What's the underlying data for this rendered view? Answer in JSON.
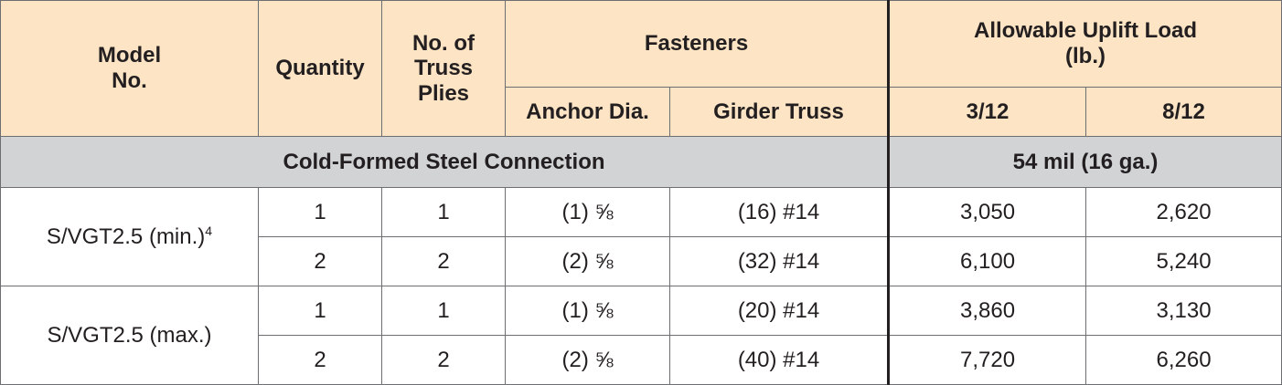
{
  "header": {
    "model": "Model\nNo.",
    "quantity": "Quantity",
    "plies": "No. of\nTruss\nPlies",
    "fasteners": "Fasteners",
    "anchor": "Anchor Dia.",
    "girder": "Girder Truss",
    "uplift": "Allowable Uplift Load\n(lb.)",
    "pitch_1": "3/12",
    "pitch_2": "8/12"
  },
  "section": {
    "label": "Cold-Formed Steel Connection",
    "thickness": "54 mil (16 ga.)"
  },
  "groups": [
    {
      "model": "S/VGT2.5 (min.)",
      "footnote": "4",
      "rows": [
        [
          "1",
          "1",
          "(1) ⅝",
          "(16) #14",
          "3,050",
          "2,620"
        ],
        [
          "2",
          "2",
          "(2) ⅝",
          "(32) #14",
          "6,100",
          "5,240"
        ]
      ]
    },
    {
      "model": "S/VGT2.5 (max.)",
      "rows": [
        [
          "1",
          "1",
          "(1) ⅝",
          "(20) #14",
          "3,860",
          "3,130"
        ],
        [
          "2",
          "2",
          "(2) ⅝",
          "(40) #14",
          "7,720",
          "6,260"
        ]
      ]
    }
  ]
}
